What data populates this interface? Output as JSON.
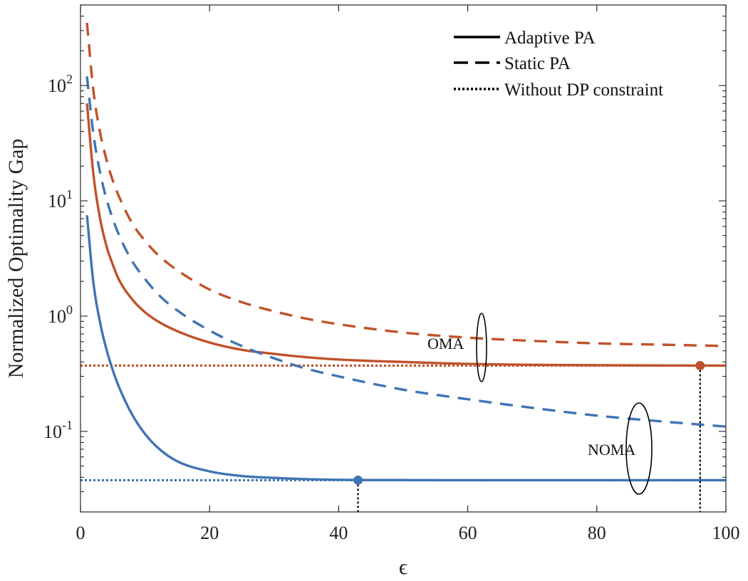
{
  "chart_data": {
    "type": "line",
    "title": "",
    "xlabel": "ϵ",
    "ylabel": "Normalized Optimality Gap",
    "xlim": [
      0,
      100
    ],
    "ylim": [
      0.02,
      500
    ],
    "yscale": "log",
    "grid": false,
    "legend_position": "top-right",
    "colors": {
      "OMA": "#c0522b",
      "NOMA": "#3f74b3",
      "marker_line": "#000000"
    },
    "x_ticks": [
      "0",
      "20",
      "40",
      "60",
      "80",
      "100"
    ],
    "y_ticks": [
      {
        "value": 0.1,
        "base": "10",
        "exp": "-1"
      },
      {
        "value": 1,
        "base": "10",
        "exp": "0"
      },
      {
        "value": 10,
        "base": "10",
        "exp": "1"
      },
      {
        "value": 100,
        "base": "10",
        "exp": "2"
      }
    ],
    "legend": [
      {
        "label": "Adaptive PA",
        "style": "solid"
      },
      {
        "label": "Static PA",
        "style": "dashed"
      },
      {
        "label": "Without DP constraint",
        "style": "dotted"
      }
    ],
    "annotations": [
      {
        "label": "OMA",
        "x": 62,
        "y": 0.62
      },
      {
        "label": "NOMA",
        "x": 87,
        "y": 0.1
      }
    ],
    "series": [
      {
        "group": "OMA",
        "style": "solid",
        "x": [
          1,
          2,
          3,
          4,
          5,
          6,
          8,
          10,
          12,
          15,
          20,
          25,
          30,
          35,
          40,
          50,
          60,
          70,
          80,
          90,
          100
        ],
        "y": [
          70,
          17,
          7.2,
          4.1,
          2.8,
          2.05,
          1.4,
          1.08,
          0.9,
          0.74,
          0.59,
          0.51,
          0.47,
          0.44,
          0.42,
          0.4,
          0.385,
          0.378,
          0.375,
          0.373,
          0.372
        ]
      },
      {
        "group": "OMA",
        "style": "dashed",
        "x": [
          1,
          2,
          3,
          4,
          5,
          6,
          8,
          10,
          12,
          15,
          20,
          25,
          30,
          35,
          40,
          50,
          60,
          70,
          80,
          90,
          100
        ],
        "y": [
          350,
          90,
          40,
          23,
          15,
          10.8,
          6.4,
          4.5,
          3.4,
          2.5,
          1.7,
          1.32,
          1.1,
          0.95,
          0.85,
          0.72,
          0.65,
          0.61,
          0.58,
          0.565,
          0.55
        ]
      },
      {
        "group": "OMA",
        "style": "dotted",
        "x": [
          0,
          100
        ],
        "y": [
          0.372,
          0.372
        ]
      },
      {
        "group": "NOMA",
        "style": "solid",
        "x": [
          1,
          2,
          3,
          4,
          5,
          6,
          8,
          10,
          12,
          15,
          20,
          25,
          30,
          35,
          40,
          50,
          60,
          70,
          80,
          90,
          100
        ],
        "y": [
          7.5,
          1.95,
          0.9,
          0.52,
          0.34,
          0.24,
          0.14,
          0.095,
          0.072,
          0.055,
          0.045,
          0.041,
          0.0395,
          0.0385,
          0.038,
          0.0378,
          0.0377,
          0.0377,
          0.0377,
          0.0377,
          0.0377
        ]
      },
      {
        "group": "NOMA",
        "style": "dashed",
        "x": [
          1,
          2,
          3,
          4,
          5,
          6,
          8,
          10,
          12,
          15,
          20,
          25,
          30,
          35,
          40,
          50,
          60,
          70,
          80,
          90,
          100
        ],
        "y": [
          120,
          38,
          18,
          10.5,
          7,
          5,
          3,
          2.1,
          1.55,
          1.12,
          0.75,
          0.55,
          0.43,
          0.35,
          0.3,
          0.23,
          0.19,
          0.16,
          0.137,
          0.122,
          0.11
        ]
      },
      {
        "group": "NOMA",
        "style": "dotted",
        "x": [
          0,
          100
        ],
        "y": [
          0.0377,
          0.0377
        ]
      }
    ],
    "markers": [
      {
        "group": "OMA",
        "x": 96,
        "y": 0.372
      },
      {
        "group": "NOMA",
        "x": 43,
        "y": 0.0377
      }
    ]
  }
}
